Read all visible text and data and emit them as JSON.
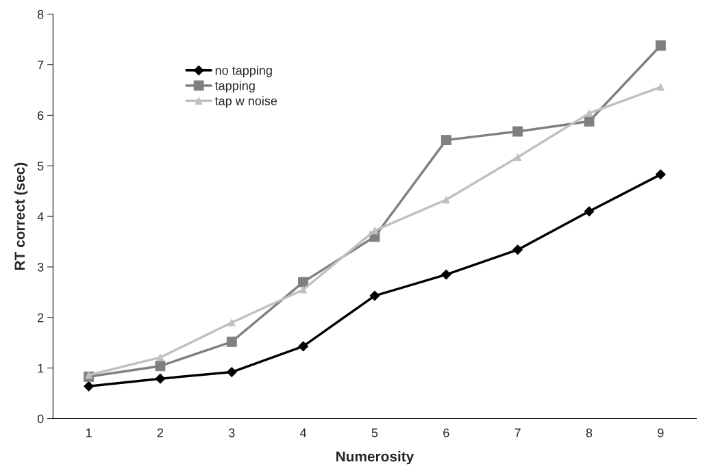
{
  "chart_data": {
    "type": "line",
    "xlabel": "Numerosity",
    "ylabel": "RT correct (sec)",
    "categories": [
      "1",
      "2",
      "3",
      "4",
      "5",
      "6",
      "7",
      "8",
      "9"
    ],
    "series": [
      {
        "name": "no tapping",
        "color": "#000000",
        "marker": "diamond",
        "values": [
          0.64,
          0.79,
          0.92,
          1.43,
          2.43,
          2.85,
          3.34,
          4.1,
          4.83
        ]
      },
      {
        "name": "tapping",
        "color": "#808080",
        "marker": "square",
        "values": [
          0.83,
          1.04,
          1.52,
          2.7,
          3.6,
          5.51,
          5.68,
          5.88,
          7.38
        ]
      },
      {
        "name": "tap w noise",
        "color": "#c0c0c0",
        "marker": "triangle",
        "values": [
          0.86,
          1.21,
          1.9,
          2.55,
          3.72,
          4.33,
          5.17,
          6.04,
          6.56
        ]
      }
    ],
    "ylim": [
      0,
      8
    ],
    "yticks": [
      0,
      1,
      2,
      3,
      4,
      5,
      6,
      7,
      8
    ],
    "grid": false,
    "legend": "top left",
    "line_style": "solid"
  }
}
